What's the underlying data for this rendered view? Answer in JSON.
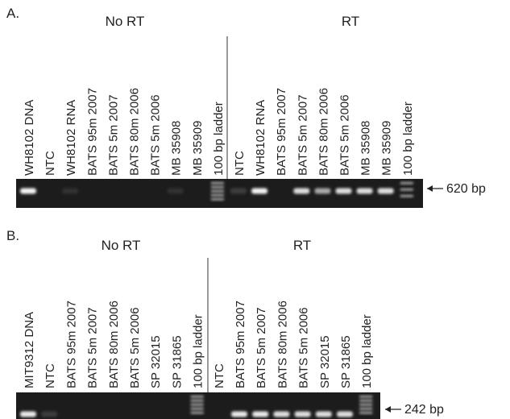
{
  "panels": [
    {
      "label": "A.",
      "groups": [
        {
          "title": "No RT"
        },
        {
          "title": "RT"
        }
      ],
      "lanes": [
        "WH8102 DNA",
        "NTC",
        "WH8102 RNA",
        "BATS 95m 2007",
        "BATS 5m 2007",
        "BATS 80m 2006",
        "BATS 5m 2006",
        "MB 35908",
        "MB 35909",
        "100 bp ladder",
        "NTC",
        "WH8102 RNA",
        "BATS 95m 2007",
        "BATS 5m 2007",
        "BATS 80m 2006",
        "BATS 5m 2006",
        "MB 35908",
        "MB 35909",
        "100 bp ladder"
      ],
      "marker": "620 bp"
    },
    {
      "label": "B.",
      "groups": [
        {
          "title": "No RT"
        },
        {
          "title": "RT"
        }
      ],
      "lanes": [
        "MIT9312 DNA",
        "NTC",
        "BATS 95m 2007",
        "BATS 5m 2007",
        "BATS 80m 2006",
        "BATS 5m 2006",
        "SP 32015",
        "SP 31865",
        "100 bp ladder",
        "NTC",
        "BATS 95m 2007",
        "BATS 5m 2007",
        "BATS 80m 2006",
        "BATS 5m 2006",
        "SP 32015",
        "SP 31865",
        "100 bp ladder"
      ],
      "marker": "242 bp"
    }
  ]
}
